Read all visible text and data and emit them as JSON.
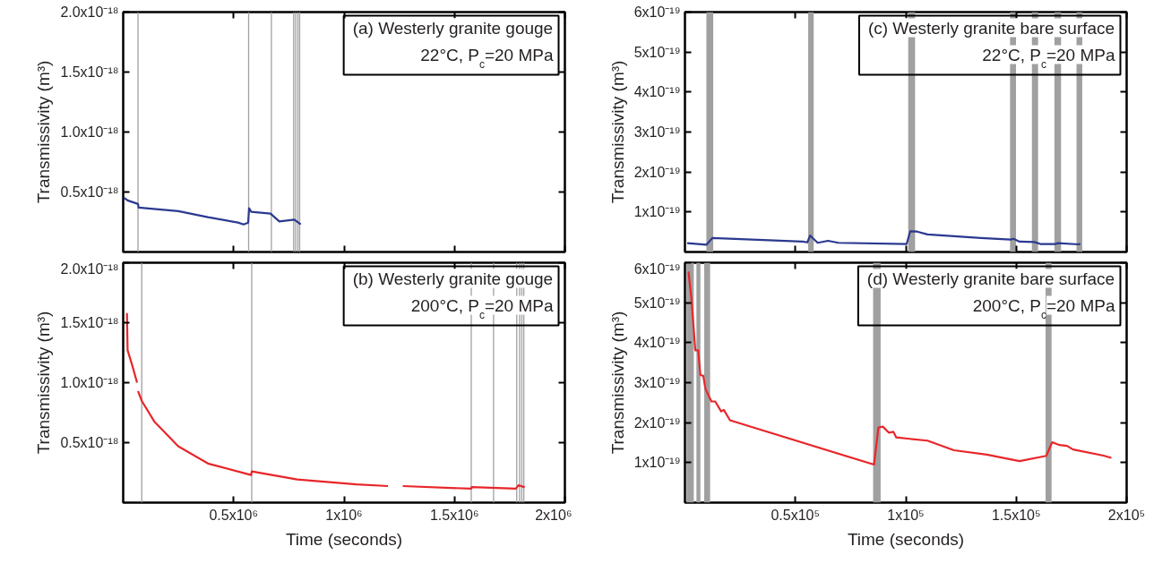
{
  "chart_data": [
    {
      "type": "line",
      "annotations": [
        "(a) Westerly granite gouge",
        "22°C, P$_{c}$=20 MPa"
      ],
      "ylabel": "Transmissivity (m³)",
      "tick_labels": "y",
      "x": [
        5000.0,
        20000.0,
        67000.0,
        70000.0,
        250000.0,
        384000.0,
        520000.0,
        545000.0,
        566000.0,
        570000.0,
        580000.0,
        667000.0,
        707000.0,
        775000.0,
        804000.0
      ],
      "series": [
        {
          "color": "#2b3990",
          "values": [
            4.5e-19,
            4.3e-19,
            4e-19,
            3.7e-19,
            3.4e-19,
            2.9e-19,
            2.45e-19,
            2.3e-19,
            2.45e-19,
            3.65e-19,
            3.35e-19,
            3.2e-19,
            2.55e-19,
            2.7e-19,
            2.3e-19
          ]
        }
      ],
      "xlim": [
        0,
        2000000.0
      ],
      "ylim": [
        0,
        2e-18
      ],
      "xticks": [
        {
          "value": 500000.0,
          "label": null
        },
        {
          "value": 1000000.0,
          "label": null
        },
        {
          "value": 1500000.0,
          "label": null
        },
        {
          "value": 2000000.0,
          "label": null
        }
      ],
      "yticks": [
        {
          "value": 5e-19,
          "label": "0.5x10⁻¹⁸"
        },
        {
          "value": 1e-18,
          "label": "1.0x10⁻¹⁸"
        },
        {
          "value": 1.5e-18,
          "label": "1.5x10⁻¹⁸"
        },
        {
          "value": 2e-18,
          "label": "2.0x10⁻¹⁸"
        }
      ],
      "ref_lines": [
        {
          "axis": "x",
          "value": 67000.0,
          "color": "#a0a0a0"
        },
        {
          "axis": "x",
          "value": 568000.0,
          "color": "#a0a0a0"
        },
        {
          "axis": "x",
          "value": 671000.0,
          "color": "#a0a0a0"
        },
        {
          "axis": "x",
          "value": 772000.0,
          "color": "#a0a0a0"
        },
        {
          "axis": "x",
          "value": 781000.0,
          "color": "#a0a0a0"
        },
        {
          "axis": "x",
          "value": 791000.0,
          "color": "#a0a0a0"
        },
        {
          "axis": "x",
          "value": 799000.0,
          "color": "#a0a0a0"
        }
      ]
    },
    {
      "type": "line",
      "annotations": [
        "(c) Westerly granite bare surface",
        "22°C, P$_{c}$=20 MPa"
      ],
      "ylabel": "Transmissivity (m³)",
      "tick_labels": "y",
      "x": [
        1000.0,
        9700.0,
        12400.0,
        53300.0,
        55400.0,
        56700.0,
        60100.0,
        64800.0,
        69500.0,
        100400.0,
        102000.0,
        105100.0,
        109800.0,
        134000.0,
        147400.0,
        148800.0,
        151500.0,
        158200.0,
        160900.0,
        167600.0,
        169000.0,
        178300.0,
        179000.0
      ],
      "series": [
        {
          "color": "#2b3990",
          "values": [
            2.2e-20,
            1.8e-20,
            3.5e-20,
            2.6e-20,
            2.4e-20,
            4.1e-20,
            2.3e-20,
            2.8e-20,
            2.3e-20,
            2e-20,
            5.2e-20,
            5.1e-20,
            4.4e-20,
            3.5e-20,
            3.1e-20,
            3.3e-20,
            2.6e-20,
            2.5e-20,
            2e-20,
            2e-20,
            2.2e-20,
            1.9e-20,
            2.1e-20
          ]
        }
      ],
      "xlim": [
        0,
        200000.0
      ],
      "ylim": [
        0,
        6e-19
      ],
      "xticks": [
        {
          "value": 50000.0,
          "label": null
        },
        {
          "value": 100000.0,
          "label": null
        },
        {
          "value": 150000.0,
          "label": null
        },
        {
          "value": 200000.0,
          "label": null
        }
      ],
      "yticks": [
        {
          "value": 1e-19,
          "label": "1x10⁻¹⁹"
        },
        {
          "value": 2e-19,
          "label": "2x10⁻¹⁹"
        },
        {
          "value": 3e-19,
          "label": "3x10⁻¹⁹"
        },
        {
          "value": 4e-19,
          "label": "4x10⁻¹⁹"
        },
        {
          "value": 5e-19,
          "label": "5x10⁻¹⁹"
        },
        {
          "value": 6e-19,
          "label": "6x10⁻¹⁹"
        }
      ],
      "bands": [
        {
          "axis": "x",
          "from": 9700.0,
          "to": 12800.0,
          "color": "#a0a0a0"
        },
        {
          "axis": "x",
          "from": 55800.0,
          "to": 58300.0,
          "color": "#a0a0a0"
        },
        {
          "axis": "x",
          "from": 101100.0,
          "to": 104200.0,
          "color": "#a0a0a0"
        },
        {
          "axis": "x",
          "from": 147200.0,
          "to": 149900.0,
          "color": "#a0a0a0"
        },
        {
          "axis": "x",
          "from": 157100.0,
          "to": 159900.0,
          "color": "#a0a0a0"
        },
        {
          "axis": "x",
          "from": 167300.0,
          "to": 170300.0,
          "color": "#a0a0a0"
        },
        {
          "axis": "x",
          "from": 177300.0,
          "to": 179900.0,
          "color": "#a0a0a0"
        }
      ]
    },
    {
      "type": "line",
      "annotations": [
        "(b) Westerly granite gouge",
        "200°C, P$_{c}$=20 MPa"
      ],
      "xlabel": "Time (seconds)",
      "ylabel": "Transmissivity (m³)",
      "x": [
        17000.0,
        20000.0,
        40000.0,
        63000.0,
        65000.0,
        67000.0,
        85000.0,
        141000.0,
        249000.0,
        384000.0,
        579000.0,
        582000.0,
        788000.0,
        1057000.0,
        1199000.0,
        1230000.0,
        1266000.0,
        1576000.0,
        1578000.0,
        1778000.0,
        1790000.0,
        1818000.0
      ],
      "series": [
        {
          "color": "#e8262a",
          "values": [
            1.58e-18,
            1.27e-18,
            1.15e-18,
            1e-18,
            null,
            9.3e-19,
            8.45e-19,
            6.76e-19,
            4.7e-19,
            3.26e-19,
            2.3e-19,
            2.6e-19,
            1.93e-19,
            1.52e-19,
            1.38e-19,
            null,
            1.38e-19,
            1.16e-19,
            1.3e-19,
            1.16e-19,
            1.45e-19,
            1.28e-19
          ]
        }
      ],
      "xlim": [
        0,
        2000000.0
      ],
      "ylim": [
        0,
        2e-18
      ],
      "xticks": [
        {
          "value": 500000.0,
          "label": "0.5x10⁶"
        },
        {
          "value": 1000000.0,
          "label": "1x10⁶"
        },
        {
          "value": 1500000.0,
          "label": "1.5x10⁶"
        },
        {
          "value": 2000000.0,
          "label": "2x10⁶"
        }
      ],
      "yticks": [
        {
          "value": 5e-19,
          "label": "0.5x10⁻¹⁸"
        },
        {
          "value": 1e-18,
          "label": "1.0x10⁻¹⁸"
        },
        {
          "value": 1.5e-18,
          "label": "1.5x10⁻¹⁸"
        },
        {
          "value": 2e-18,
          "label": "2.0x10⁻¹⁸"
        }
      ],
      "ref_lines": [
        {
          "axis": "x",
          "value": 84000.0,
          "color": "#a0a0a0"
        },
        {
          "axis": "x",
          "value": 582000.0,
          "color": "#a0a0a0"
        },
        {
          "axis": "x",
          "value": 1576000.0,
          "color": "#a0a0a0"
        },
        {
          "axis": "x",
          "value": 1677000.0,
          "color": "#a0a0a0"
        },
        {
          "axis": "x",
          "value": 1782000.0,
          "color": "#a0a0a0"
        },
        {
          "axis": "x",
          "value": 1795000.0,
          "color": "#a0a0a0"
        },
        {
          "axis": "x",
          "value": 1805000.0,
          "color": "#a0a0a0"
        },
        {
          "axis": "x",
          "value": 1814000.0,
          "color": "#a0a0a0"
        }
      ]
    },
    {
      "type": "line",
      "annotations": [
        "(d) Westerly granite bare surface",
        "200°C, P$_{c}$=20 MPa"
      ],
      "xlabel": "Time (seconds)",
      "ylabel": "Transmissivity (m³)",
      "x": [
        1600.0,
        2900.0,
        4700.0,
        6000.0,
        7000.0,
        8300.0,
        9300.0,
        12000.0,
        13700.0,
        16400.0,
        17600.0,
        20400.0,
        85600.0,
        87600.0,
        89600.0,
        92300.0,
        94400.0,
        95700.0,
        109800.0,
        121800.0,
        136700.0,
        151500.0,
        163600.0,
        166300.0,
        169600.0,
        173000.0,
        175700.0,
        189100.0,
        193100.0
      ],
      "series": [
        {
          "color": "#e8262a",
          "values": [
            5.78e-19,
            5.12e-19,
            3.81e-19,
            3.81e-19,
            3.19e-19,
            3.17e-19,
            2.84e-19,
            2.53e-19,
            2.53e-19,
            2.28e-19,
            2.32e-19,
            2.06e-19,
            9.5e-20,
            1.88e-19,
            1.9e-19,
            1.75e-19,
            1.77e-19,
            1.63e-19,
            1.55e-19,
            1.31e-19,
            1.2e-19,
            1.04e-19,
            1.17e-19,
            1.51e-19,
            1.44e-19,
            1.42e-19,
            1.33e-19,
            1.18e-19,
            1.12e-19
          ]
        }
      ],
      "xlim": [
        0,
        200000.0
      ],
      "ylim": [
        0,
        6e-19
      ],
      "xticks": [
        {
          "value": 50000.0,
          "label": "0.5x10⁵"
        },
        {
          "value": 100000.0,
          "label": "1x10⁵"
        },
        {
          "value": 150000.0,
          "label": "1.5x10⁵"
        },
        {
          "value": 200000.0,
          "label": "2x10⁵"
        }
      ],
      "yticks": [
        {
          "value": 1e-19,
          "label": "1x10⁻¹⁹"
        },
        {
          "value": 2e-19,
          "label": "2x10⁻¹⁹"
        },
        {
          "value": 3e-19,
          "label": "3x10⁻¹⁹"
        },
        {
          "value": 4e-19,
          "label": "4x10⁻¹⁹"
        },
        {
          "value": 5e-19,
          "label": "5x10⁻¹⁹"
        },
        {
          "value": 6e-19,
          "label": "6x10⁻¹⁹"
        }
      ],
      "bands": [
        {
          "axis": "x",
          "from": 700.0,
          "to": 4000.0,
          "color": "#a0a0a0"
        },
        {
          "axis": "x",
          "from": 5200.0,
          "to": 7000.0,
          "color": "#a0a0a0"
        },
        {
          "axis": "x",
          "from": 8700.0,
          "to": 11400.0,
          "color": "#a0a0a0"
        },
        {
          "axis": "x",
          "from": 85200.0,
          "to": 88600.0,
          "color": "#a0a0a0"
        },
        {
          "axis": "x",
          "from": 163300.0,
          "to": 166000.0,
          "color": "#a0a0a0"
        }
      ]
    }
  ]
}
